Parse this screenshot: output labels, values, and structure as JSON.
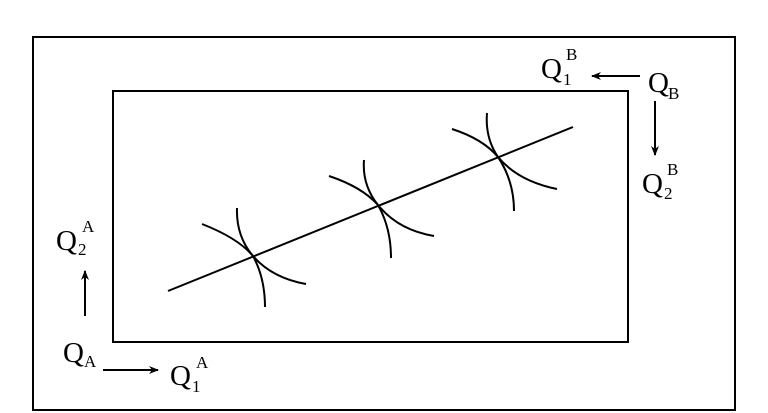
{
  "diagram": {
    "colors": {
      "stroke": "#000000",
      "background": "#ffffff"
    },
    "labels": {
      "q1b": {
        "main": "Q",
        "sub": "1",
        "sup": "B"
      },
      "qb": {
        "main": "Q",
        "sub": "B"
      },
      "q2b": {
        "main": "Q",
        "sub": "2",
        "sup": "B"
      },
      "q2a": {
        "main": "Q",
        "sub": "2",
        "sup": "A"
      },
      "qa": {
        "main": "Q",
        "sub": "A"
      },
      "q1a": {
        "main": "Q",
        "sub": "1",
        "sup": "A"
      }
    },
    "tangency_points": 3
  }
}
